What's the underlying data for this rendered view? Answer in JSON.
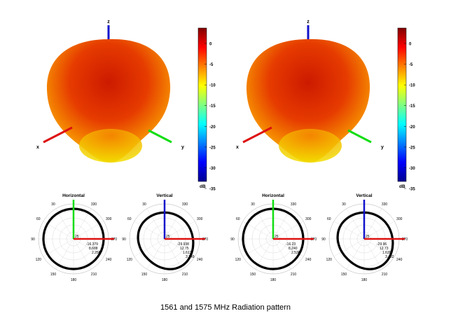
{
  "caption": "1561 and 1575 MHz Radiation pattern",
  "colorbar": {
    "ticks": [
      0,
      -5,
      -10,
      -15,
      -20,
      -25,
      -30,
      -35
    ],
    "unit": "dB",
    "colors": [
      "#00008f",
      "#0000ff",
      "#0080ff",
      "#00ffff",
      "#80ff80",
      "#ffff00",
      "#ff8000",
      "#ff0000",
      "#800000"
    ]
  },
  "axis_colors": {
    "x": "#dd1111",
    "y": "#11dd11",
    "z": "#1111cc"
  },
  "chart_data": [
    {
      "type": "3d-radiation-pattern",
      "axis_labels": [
        "x",
        "y",
        "z"
      ],
      "colorbar_ticks": [
        0,
        -5,
        -10,
        -15,
        -20,
        -25,
        -30,
        -35
      ],
      "colorbar_unit": "dB",
      "polar": [
        {
          "title": "Horizontal",
          "angle_ticks": [
            "30",
            "0",
            "330",
            "60",
            "300",
            "90",
            "270",
            "120",
            "240",
            "150",
            "210",
            "180"
          ],
          "radial_labels": [
            "25",
            "-16.379",
            "8.688",
            "2.258"
          ],
          "pattern": "circle"
        },
        {
          "title": "Vertical",
          "angle_ticks": [
            "30",
            "0",
            "330",
            "60",
            "300",
            "90",
            "270",
            "120",
            "240",
            "150",
            "210",
            "180"
          ],
          "radial_labels": [
            "25",
            "-29.938",
            "12.75",
            "1.613",
            "3.249"
          ],
          "pattern": "pear"
        }
      ]
    },
    {
      "type": "3d-radiation-pattern",
      "axis_labels": [
        "x",
        "y",
        "z"
      ],
      "colorbar_ticks": [
        0,
        -5,
        -10,
        -15,
        -20,
        -25,
        -30,
        -35
      ],
      "colorbar_unit": "dB",
      "polar": [
        {
          "title": "Horizontal",
          "angle_ticks": [
            "30",
            "0",
            "330",
            "60",
            "300",
            "90",
            "270",
            "120",
            "240",
            "150",
            "210",
            "180"
          ],
          "radial_labels": [
            "25",
            "-16.23",
            "8.240",
            "2.538"
          ],
          "pattern": "circle"
        },
        {
          "title": "Vertical",
          "angle_ticks": [
            "30",
            "0",
            "330",
            "60",
            "300",
            "90",
            "270",
            "120",
            "240",
            "150",
            "210",
            "180"
          ],
          "radial_labels": [
            "25",
            "-29.96",
            "12.73",
            "1.639",
            "3.482"
          ],
          "pattern": "pear"
        }
      ]
    }
  ]
}
